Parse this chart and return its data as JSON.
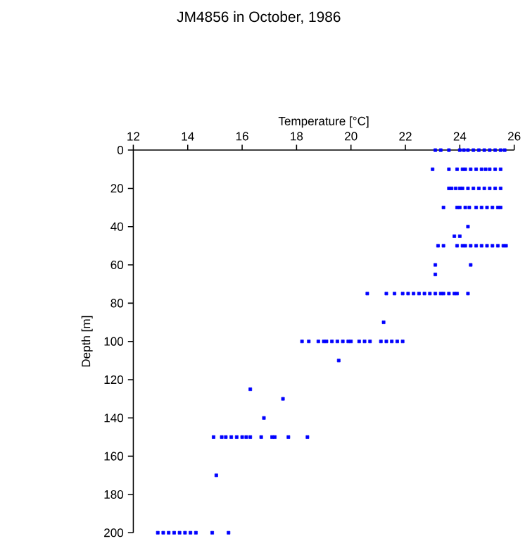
{
  "chart_data": {
    "type": "scatter",
    "title": "JM4856 in October, 1986",
    "xlabel": "Temperature [°C]",
    "ylabel": "Depth [m]",
    "xlim": [
      12,
      26
    ],
    "xticks": [
      12,
      14,
      16,
      18,
      20,
      22,
      24,
      26
    ],
    "ylim": [
      200,
      0
    ],
    "yticks": [
      0,
      20,
      40,
      60,
      80,
      100,
      120,
      140,
      160,
      180,
      200
    ],
    "marker": "square",
    "series": [
      {
        "color": "#0000ff",
        "x": [
          23.1,
          23.3,
          23.6,
          24.0,
          24.15,
          24.3,
          24.5,
          24.7,
          24.9,
          25.1,
          25.3,
          25.5,
          25.65,
          23.0,
          23.6,
          23.9,
          24.1,
          24.2,
          24.4,
          24.6,
          24.8,
          24.95,
          25.1,
          25.3,
          25.5,
          23.6,
          23.7,
          23.85,
          24.0,
          24.1,
          24.3,
          24.5,
          24.7,
          24.9,
          25.1,
          25.3,
          25.5,
          23.4,
          23.9,
          24.0,
          24.2,
          24.35,
          24.6,
          24.8,
          25.0,
          25.2,
          25.4,
          25.5,
          24.3,
          23.8,
          24.0,
          23.2,
          23.4,
          23.9,
          24.1,
          24.2,
          24.4,
          24.6,
          24.8,
          25.0,
          25.2,
          25.4,
          25.6,
          25.7,
          23.1,
          24.4,
          23.1,
          20.6,
          21.3,
          21.6,
          21.9,
          22.1,
          22.3,
          22.5,
          22.7,
          22.9,
          23.1,
          23.3,
          23.4,
          23.6,
          23.8,
          23.9,
          24.3,
          21.2,
          18.2,
          18.45,
          18.8,
          19.0,
          19.1,
          19.3,
          19.5,
          19.7,
          19.9,
          20.0,
          20.3,
          20.5,
          20.7,
          21.1,
          21.3,
          21.5,
          21.7,
          21.9,
          19.55,
          16.3,
          17.5,
          16.8,
          14.95,
          15.25,
          15.4,
          15.6,
          15.8,
          16.0,
          16.15,
          16.3,
          16.7,
          17.1,
          17.2,
          17.7,
          18.4,
          15.05,
          12.9,
          13.1,
          13.3,
          13.5,
          13.7,
          13.9,
          14.1,
          14.3,
          14.9,
          15.5
        ],
        "values": [
          0,
          0,
          0,
          0,
          0,
          0,
          0,
          0,
          0,
          0,
          0,
          0,
          0,
          10,
          10,
          10,
          10,
          10,
          10,
          10,
          10,
          10,
          10,
          10,
          10,
          20,
          20,
          20,
          20,
          20,
          20,
          20,
          20,
          20,
          20,
          20,
          20,
          30,
          30,
          30,
          30,
          30,
          30,
          30,
          30,
          30,
          30,
          30,
          40,
          45,
          45,
          50,
          50,
          50,
          50,
          50,
          50,
          50,
          50,
          50,
          50,
          50,
          50,
          50,
          60,
          60,
          65,
          75,
          75,
          75,
          75,
          75,
          75,
          75,
          75,
          75,
          75,
          75,
          75,
          75,
          75,
          75,
          75,
          90,
          100,
          100,
          100,
          100,
          100,
          100,
          100,
          100,
          100,
          100,
          100,
          100,
          100,
          100,
          100,
          100,
          100,
          100,
          110,
          125,
          130,
          140,
          150,
          150,
          150,
          150,
          150,
          150,
          150,
          150,
          150,
          150,
          150,
          150,
          150,
          170,
          200,
          200,
          200,
          200,
          200,
          200,
          200,
          200,
          200,
          200
        ]
      }
    ]
  }
}
